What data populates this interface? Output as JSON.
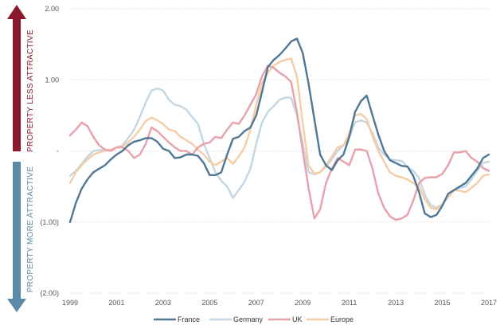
{
  "chart_data": {
    "type": "line",
    "title": "",
    "xlabel": "",
    "ylabel": "",
    "xlim": [
      1999,
      2017
    ],
    "ylim": [
      -2,
      2
    ],
    "x_ticks": [
      "1999",
      "2001",
      "2003",
      "2005",
      "2007",
      "2009",
      "2011",
      "2013",
      "2015",
      "2017"
    ],
    "y_ticks": [
      {
        "value": 2,
        "label": "2.00"
      },
      {
        "value": 1,
        "label": "1.00"
      },
      {
        "value": 0,
        "label": "-"
      },
      {
        "value": -1,
        "label": "(1.00)"
      },
      {
        "value": -2,
        "label": "(2.00)"
      }
    ],
    "grid": {
      "horizontal": true,
      "style": "dotted"
    },
    "legend_position": "bottom",
    "annotations": {
      "top_arrow": {
        "label": "PROPERTY LESS ATTRACTIVE",
        "color": "#8a1a2b"
      },
      "bottom_arrow": {
        "label": "PROPERTY MORE ATTRACTIVE",
        "color": "#5b8aa8"
      }
    },
    "series": [
      {
        "name": "France",
        "color": "#4f7897",
        "x": [
          1999,
          1999.25,
          1999.5,
          1999.75,
          2000,
          2000.25,
          2000.5,
          2000.75,
          2001,
          2001.25,
          2001.5,
          2001.75,
          2002,
          2002.25,
          2002.5,
          2002.75,
          2003,
          2003.25,
          2003.5,
          2003.75,
          2004,
          2004.25,
          2004.5,
          2004.75,
          2005,
          2005.25,
          2005.5,
          2005.75,
          2006,
          2006.25,
          2006.5,
          2006.75,
          2007,
          2007.25,
          2007.5,
          2007.75,
          2008,
          2008.25,
          2008.5,
          2008.75,
          2009,
          2009.25,
          2009.5,
          2009.75,
          2010,
          2010.25,
          2010.5,
          2010.75,
          2011,
          2011.25,
          2011.5,
          2011.75,
          2012,
          2012.25,
          2012.5,
          2012.75,
          2013,
          2013.25,
          2013.5,
          2013.75,
          2014,
          2014.25,
          2014.5,
          2014.75,
          2015,
          2015.25,
          2015.5,
          2015.75,
          2016,
          2016.25,
          2016.5,
          2016.75,
          2017
        ],
        "values": [
          -1.0,
          -0.73,
          -0.53,
          -0.4,
          -0.3,
          -0.25,
          -0.2,
          -0.12,
          -0.05,
          0.0,
          0.08,
          0.13,
          0.15,
          0.18,
          0.18,
          0.13,
          0.03,
          0.0,
          -0.1,
          -0.09,
          -0.05,
          -0.05,
          -0.07,
          -0.17,
          -0.34,
          -0.34,
          -0.3,
          -0.05,
          0.17,
          0.2,
          0.28,
          0.33,
          0.5,
          0.83,
          1.18,
          1.28,
          1.35,
          1.44,
          1.54,
          1.58,
          1.38,
          0.95,
          0.45,
          -0.05,
          -0.2,
          -0.27,
          -0.13,
          -0.05,
          0.2,
          0.55,
          0.7,
          0.78,
          0.5,
          0.23,
          0.0,
          -0.13,
          -0.17,
          -0.21,
          -0.22,
          -0.35,
          -0.58,
          -0.88,
          -0.93,
          -0.9,
          -0.77,
          -0.6,
          -0.55,
          -0.5,
          -0.45,
          -0.35,
          -0.25,
          -0.1,
          -0.05
        ]
      },
      {
        "name": "Germany",
        "color": "#c4d6e2",
        "x": [
          1999,
          1999.25,
          1999.5,
          1999.75,
          2000,
          2000.25,
          2000.5,
          2000.75,
          2001,
          2001.25,
          2001.5,
          2001.75,
          2002,
          2002.25,
          2002.5,
          2002.75,
          2003,
          2003.25,
          2003.5,
          2003.75,
          2004,
          2004.25,
          2004.5,
          2004.75,
          2005,
          2005.25,
          2005.5,
          2005.75,
          2006,
          2006.25,
          2006.5,
          2006.75,
          2007,
          2007.25,
          2007.5,
          2007.75,
          2008,
          2008.25,
          2008.5,
          2008.75,
          2009,
          2009.25,
          2009.5,
          2009.75,
          2010,
          2010.25,
          2010.5,
          2010.75,
          2011,
          2011.25,
          2011.5,
          2011.75,
          2012,
          2012.25,
          2012.5,
          2012.75,
          2013,
          2013.25,
          2013.5,
          2013.75,
          2014,
          2014.25,
          2014.5,
          2014.75,
          2015,
          2015.25,
          2015.5,
          2015.75,
          2016,
          2016.25,
          2016.5,
          2016.75,
          2017
        ],
        "values": [
          -0.35,
          -0.28,
          -0.18,
          -0.08,
          0.0,
          0.01,
          0.02,
          0.0,
          0.05,
          0.08,
          0.18,
          0.3,
          0.48,
          0.68,
          0.85,
          0.88,
          0.85,
          0.72,
          0.65,
          0.63,
          0.58,
          0.48,
          0.38,
          0.1,
          -0.1,
          -0.3,
          -0.42,
          -0.5,
          -0.66,
          -0.55,
          -0.43,
          -0.25,
          0.1,
          0.4,
          0.55,
          0.63,
          0.72,
          0.75,
          0.75,
          0.5,
          0.1,
          -0.3,
          -0.33,
          -0.3,
          -0.22,
          -0.12,
          0.0,
          0.08,
          0.2,
          0.4,
          0.43,
          0.4,
          0.25,
          0.05,
          -0.05,
          -0.12,
          -0.13,
          -0.14,
          -0.22,
          -0.28,
          -0.38,
          -0.62,
          -0.76,
          -0.8,
          -0.75,
          -0.65,
          -0.55,
          -0.52,
          -0.5,
          -0.4,
          -0.28,
          -0.17,
          -0.15
        ]
      },
      {
        "name": "UK",
        "color": "#e8a1aa",
        "x": [
          1999,
          1999.25,
          1999.5,
          1999.75,
          2000,
          2000.25,
          2000.5,
          2000.75,
          2001,
          2001.25,
          2001.5,
          2001.75,
          2002,
          2002.25,
          2002.5,
          2002.75,
          2003,
          2003.25,
          2003.5,
          2003.75,
          2004,
          2004.25,
          2004.5,
          2004.75,
          2005,
          2005.25,
          2005.5,
          2005.75,
          2006,
          2006.25,
          2006.5,
          2006.75,
          2007,
          2007.25,
          2007.5,
          2007.75,
          2008,
          2008.25,
          2008.5,
          2008.75,
          2009,
          2009.25,
          2009.5,
          2009.75,
          2010,
          2010.25,
          2010.5,
          2010.75,
          2011,
          2011.25,
          2011.5,
          2011.75,
          2012,
          2012.25,
          2012.5,
          2012.75,
          2013,
          2013.25,
          2013.5,
          2013.75,
          2014,
          2014.25,
          2014.5,
          2014.75,
          2015,
          2015.25,
          2015.5,
          2015.75,
          2016,
          2016.25,
          2016.5,
          2016.75,
          2017
        ],
        "values": [
          0.22,
          0.3,
          0.4,
          0.35,
          0.2,
          0.08,
          0.02,
          0.0,
          0.05,
          0.05,
          0.0,
          -0.1,
          -0.05,
          0.1,
          0.33,
          0.28,
          0.2,
          0.12,
          0.05,
          0.0,
          0.0,
          -0.05,
          0.05,
          0.1,
          0.12,
          0.2,
          0.18,
          0.3,
          0.4,
          0.38,
          0.5,
          0.65,
          0.8,
          1.05,
          1.2,
          1.17,
          1.1,
          1.05,
          0.97,
          0.55,
          0.0,
          -0.52,
          -0.95,
          -0.82,
          -0.45,
          -0.25,
          -0.1,
          -0.15,
          -0.2,
          0.02,
          0.02,
          0.0,
          -0.25,
          -0.6,
          -0.8,
          -0.92,
          -0.97,
          -0.95,
          -0.9,
          -0.7,
          -0.45,
          -0.38,
          -0.37,
          -0.37,
          -0.32,
          -0.2,
          -0.02,
          -0.02,
          0.0,
          -0.1,
          -0.15,
          -0.24,
          -0.28
        ]
      },
      {
        "name": "Europe",
        "color": "#f6cca4",
        "x": [
          1999,
          1999.25,
          1999.5,
          1999.75,
          2000,
          2000.25,
          2000.5,
          2000.75,
          2001,
          2001.25,
          2001.5,
          2001.75,
          2002,
          2002.25,
          2002.5,
          2002.75,
          2003,
          2003.25,
          2003.5,
          2003.75,
          2004,
          2004.25,
          2004.5,
          2004.75,
          2005,
          2005.25,
          2005.5,
          2005.75,
          2006,
          2006.25,
          2006.5,
          2006.75,
          2007,
          2007.25,
          2007.5,
          2007.75,
          2008,
          2008.25,
          2008.5,
          2008.75,
          2009,
          2009.25,
          2009.5,
          2009.75,
          2010,
          2010.25,
          2010.5,
          2010.75,
          2011,
          2011.25,
          2011.5,
          2011.75,
          2012,
          2012.25,
          2012.5,
          2012.75,
          2013,
          2013.25,
          2013.5,
          2013.75,
          2014,
          2014.25,
          2014.5,
          2014.75,
          2015,
          2015.25,
          2015.5,
          2015.75,
          2016,
          2016.25,
          2016.5,
          2016.75,
          2017
        ],
        "values": [
          -0.45,
          -0.3,
          -0.2,
          -0.12,
          -0.05,
          -0.02,
          0.0,
          0.02,
          0.05,
          0.06,
          0.12,
          0.2,
          0.3,
          0.42,
          0.47,
          0.43,
          0.38,
          0.3,
          0.28,
          0.2,
          0.15,
          0.1,
          0.02,
          -0.05,
          -0.15,
          -0.2,
          -0.15,
          -0.1,
          -0.18,
          -0.08,
          0.05,
          0.3,
          0.65,
          0.95,
          1.1,
          1.2,
          1.25,
          1.28,
          1.3,
          1.05,
          0.4,
          -0.2,
          -0.32,
          -0.3,
          -0.2,
          -0.08,
          0.05,
          0.08,
          0.25,
          0.5,
          0.52,
          0.45,
          0.2,
          0.0,
          -0.15,
          -0.3,
          -0.35,
          -0.37,
          -0.4,
          -0.45,
          -0.5,
          -0.68,
          -0.8,
          -0.82,
          -0.75,
          -0.65,
          -0.55,
          -0.56,
          -0.58,
          -0.52,
          -0.45,
          -0.35,
          -0.33
        ]
      }
    ]
  }
}
